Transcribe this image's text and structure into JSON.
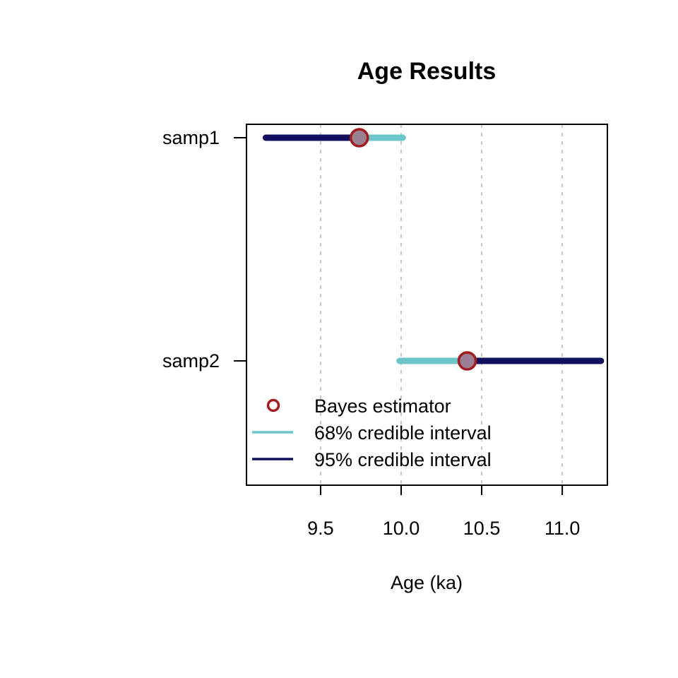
{
  "chart_data": {
    "type": "interval",
    "title": "Age Results",
    "xlabel": "Age (ka)",
    "ylabel": "",
    "xlim": [
      9.04,
      11.28
    ],
    "x_ticks": [
      9.5,
      10.0,
      10.5,
      11.0
    ],
    "x_tick_labels": [
      "9.5",
      "10.0",
      "10.5",
      "11.0"
    ],
    "grid": "vertical-dashed",
    "categories": [
      "samp1",
      "samp2"
    ],
    "samples": [
      {
        "name": "samp1",
        "bayes": 9.74,
        "ci68": [
          9.74,
          10.01
        ],
        "ci95": [
          9.16,
          9.74
        ]
      },
      {
        "name": "samp2",
        "bayes": 10.41,
        "ci68": [
          9.99,
          10.41
        ],
        "ci95": [
          10.41,
          11.24
        ]
      }
    ],
    "legend": {
      "position": "bottom-left",
      "entries": [
        {
          "label": "Bayes estimator",
          "kind": "marker"
        },
        {
          "label": "68% credible interval",
          "kind": "line68"
        },
        {
          "label": "95% credible interval",
          "kind": "line95"
        }
      ]
    },
    "colors": {
      "ci68": "#6cc5c8",
      "ci95": "#12105e",
      "bayes_stroke": "#a31a1f",
      "bayes_fill": "#9b7f93",
      "grid": "#c8c8c8"
    }
  }
}
